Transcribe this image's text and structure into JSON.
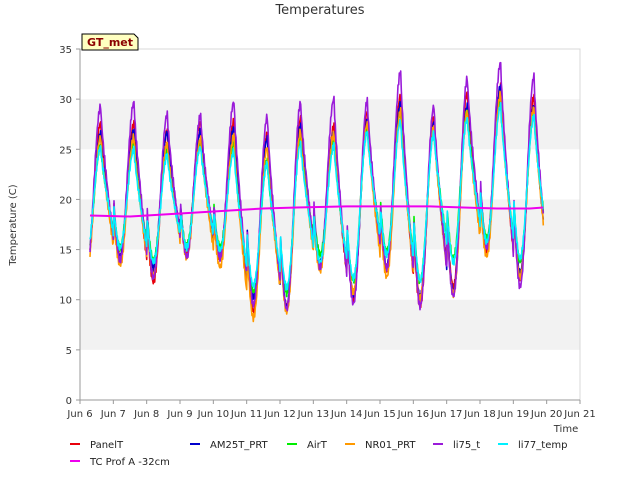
{
  "chart_data": {
    "type": "line",
    "title": "Temperatures",
    "xlabel": "Time",
    "ylabel": "Temperature (C)",
    "site_label": "GT_met",
    "xlim": [
      6,
      21
    ],
    "ylim": [
      0,
      35
    ],
    "x_ticks": [
      6,
      7,
      8,
      9,
      10,
      11,
      12,
      13,
      14,
      15,
      16,
      17,
      18,
      19,
      20,
      21
    ],
    "x_tick_labels": [
      "Jun 6",
      "Jun 7",
      "Jun 8",
      "Jun 9",
      "Jun 10",
      "Jun 11",
      "Jun 12",
      "Jun 13",
      "Jun 14",
      "Jun 15",
      "Jun 16",
      "Jun 17",
      "Jun 18",
      "Jun 19",
      "Jun 20",
      "Jun 21"
    ],
    "y_ticks": [
      0,
      5,
      10,
      15,
      20,
      25,
      30,
      35
    ],
    "y_tick_labels": [
      "0",
      "5",
      "10",
      "15",
      "20",
      "25",
      "30",
      "35"
    ],
    "grid": "horizontal bands",
    "legend_position": "bottom",
    "daily_extremes_note_free": true,
    "days": [
      6.5,
      7.5,
      8.5,
      9.5,
      10.5,
      11.5,
      12.5,
      13.5,
      14.5,
      15.5,
      16.5,
      17.5,
      18.5,
      19.5
    ],
    "series": [
      {
        "name": "PanelT",
        "color": "#e8000b",
        "max": [
          27.5,
          27.5,
          27.0,
          27.5,
          28.0,
          26.5,
          28.0,
          27.5,
          28.5,
          30.5,
          28.0,
          30.5,
          31.5,
          30.0
        ],
        "min": [
          13.0,
          14.0,
          12.0,
          14.5,
          14.0,
          9.0,
          9.0,
          13.5,
          10.0,
          13.0,
          9.5,
          11.0,
          15.0,
          12.0
        ]
      },
      {
        "name": "AM25T_PRT",
        "color": "#0000cc",
        "max": [
          26.5,
          27.0,
          26.5,
          27.0,
          27.0,
          26.0,
          27.5,
          26.5,
          28.0,
          29.5,
          27.5,
          29.5,
          31.0,
          29.5
        ],
        "min": [
          13.5,
          14.5,
          13.0,
          15.0,
          14.5,
          10.0,
          9.5,
          13.5,
          10.5,
          13.5,
          10.0,
          11.0,
          15.5,
          12.5
        ]
      },
      {
        "name": "AirT",
        "color": "#00ee00",
        "max": [
          25.5,
          25.5,
          25.0,
          25.5,
          25.5,
          24.0,
          26.0,
          26.0,
          27.0,
          28.5,
          27.0,
          28.5,
          30.0,
          28.5
        ],
        "min": [
          14.0,
          15.0,
          14.0,
          15.5,
          15.0,
          11.0,
          10.5,
          14.5,
          12.0,
          14.5,
          12.0,
          14.0,
          16.0,
          14.0
        ]
      },
      {
        "name": "NR01_PRT",
        "color": "#ff9900",
        "max": [
          26.0,
          26.5,
          25.5,
          26.0,
          26.5,
          25.0,
          27.0,
          26.5,
          27.5,
          29.0,
          27.0,
          29.0,
          30.5,
          29.0
        ],
        "min": [
          12.5,
          13.5,
          12.5,
          14.0,
          13.5,
          8.0,
          8.8,
          13.0,
          10.5,
          12.5,
          10.0,
          10.5,
          14.5,
          12.0
        ]
      },
      {
        "name": "li75_t",
        "color": "#9a1bd9",
        "max": [
          29.5,
          29.5,
          28.5,
          28.5,
          29.5,
          28.5,
          29.5,
          30.0,
          30.0,
          32.5,
          29.5,
          32.0,
          33.5,
          32.5
        ],
        "min": [
          13.0,
          14.0,
          12.0,
          14.5,
          14.0,
          9.5,
          9.2,
          13.0,
          9.8,
          13.0,
          9.3,
          10.5,
          15.0,
          11.5
        ]
      },
      {
        "name": "li77_temp",
        "color": "#00f0ff",
        "max": [
          25.0,
          25.0,
          24.5,
          25.0,
          25.0,
          23.5,
          25.5,
          25.5,
          26.5,
          28.0,
          26.5,
          28.0,
          29.5,
          28.0
        ],
        "min": [
          14.5,
          15.0,
          14.0,
          15.0,
          15.0,
          11.5,
          11.0,
          14.0,
          12.0,
          14.5,
          12.0,
          13.5,
          16.0,
          14.0
        ]
      },
      {
        "name": "TC Prof A -32cm",
        "color": "#ee00ee",
        "x": [
          6.3,
          7.5,
          9.0,
          10.5,
          11.5,
          12.5,
          14.0,
          15.5,
          16.5,
          17.5,
          18.5,
          19.5,
          19.9
        ],
        "y": [
          18.4,
          18.3,
          18.6,
          18.9,
          19.1,
          19.2,
          19.3,
          19.3,
          19.3,
          19.2,
          19.1,
          19.1,
          19.2
        ]
      }
    ],
    "legend": [
      {
        "name": "PanelT",
        "color": "#e8000b"
      },
      {
        "name": "AM25T_PRT",
        "color": "#0000cc"
      },
      {
        "name": "AirT",
        "color": "#00ee00"
      },
      {
        "name": "NR01_PRT",
        "color": "#ff9900"
      },
      {
        "name": "li75_t",
        "color": "#9a1bd9"
      },
      {
        "name": "li77_temp",
        "color": "#00f0ff"
      },
      {
        "name": "TC Prof A -32cm",
        "color": "#ee00ee"
      }
    ]
  }
}
